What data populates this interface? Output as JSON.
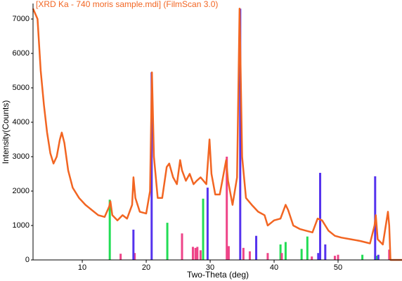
{
  "chart_data": {
    "type": "line",
    "title": "[XRD Ka - 740 moris sample.mdi] (FilmScan 3.0)",
    "x_label": "Two-Theta (deg)",
    "y_label": "Intensity(Counts)",
    "xlim": [
      2.3,
      60
    ],
    "xticks": [
      10,
      20,
      30,
      40,
      50
    ],
    "ylim": [
      0,
      7450
    ],
    "yticks": [
      0,
      1000,
      2000,
      3000,
      4000,
      5000,
      6000,
      7000
    ],
    "series": [
      {
        "style": "stick",
        "color": "#22dd55",
        "x": [
          14.3,
          23.3,
          28.9,
          41.0,
          41.8,
          44.3,
          45.2,
          53.8,
          56.0
        ],
        "values": [
          1750,
          1080,
          1780,
          450,
          520,
          320,
          680,
          150,
          120
        ]
      },
      {
        "style": "stick",
        "color": "#ee4488",
        "x": [
          16.0,
          18.2,
          25.6,
          27.3,
          27.7,
          28.0,
          28.5,
          32.6,
          32.9,
          35.2,
          36.2,
          39.0,
          41.2,
          45.9,
          49.5,
          50.0,
          58.0
        ],
        "values": [
          180,
          200,
          770,
          380,
          350,
          380,
          280,
          3000,
          400,
          350,
          250,
          200,
          200,
          100,
          120,
          150,
          300
        ]
      },
      {
        "style": "stick",
        "color": "#5533ee",
        "x": [
          18.0,
          20.85,
          29.6,
          34.7,
          37.2,
          46.9,
          47.2,
          48.0,
          55.8,
          56.3
        ],
        "values": [
          880,
          5450,
          2100,
          7300,
          700,
          200,
          2530,
          450,
          2430,
          150
        ]
      },
      {
        "style": "line",
        "color": "#f26522",
        "x": [
          2.3,
          3,
          3.5,
          4,
          4.5,
          5,
          5.5,
          6,
          6.5,
          6.8,
          7.2,
          7.8,
          8.5,
          9.5,
          10.5,
          11.5,
          12.5,
          13.5,
          14.2,
          14.4,
          14.7,
          15.5,
          16.3,
          17,
          17.8,
          18,
          18.3,
          19,
          20,
          20.6,
          20.9,
          21.2,
          21.8,
          22.5,
          23.2,
          23.6,
          24.2,
          24.8,
          25.3,
          25.6,
          26.2,
          26.8,
          27.4,
          27.9,
          28.5,
          29.4,
          29.9,
          30.2,
          30.8,
          31.5,
          32.5,
          32.8,
          33.5,
          34.2,
          34.6,
          35,
          35.6,
          36.5,
          37.5,
          38.5,
          39,
          40,
          41,
          41.8,
          42.2,
          43,
          44,
          45,
          46,
          46.8,
          47.5,
          48.5,
          49.5,
          50.5,
          52,
          53.5,
          55,
          55.7,
          55.9,
          56.2,
          57,
          57.8,
          58,
          58.2,
          59,
          60
        ],
        "values": [
          7300,
          7000,
          5500,
          4500,
          3700,
          3100,
          2800,
          3000,
          3500,
          3700,
          3400,
          2600,
          2100,
          1800,
          1600,
          1450,
          1300,
          1250,
          1550,
          1700,
          1300,
          1150,
          1300,
          1200,
          1600,
          2400,
          1800,
          1400,
          1350,
          2000,
          5450,
          3000,
          1800,
          1800,
          2700,
          2800,
          2400,
          2200,
          2900,
          2600,
          2300,
          2500,
          2200,
          2300,
          2400,
          2200,
          3500,
          2500,
          1900,
          1900,
          2900,
          2300,
          1600,
          2400,
          7300,
          3000,
          1800,
          1600,
          1400,
          1300,
          1000,
          1150,
          1200,
          1600,
          1450,
          1000,
          900,
          850,
          800,
          1200,
          1150,
          850,
          700,
          650,
          600,
          550,
          480,
          1000,
          1300,
          600,
          450,
          1400,
          1000,
          0,
          0,
          0
        ]
      }
    ]
  }
}
